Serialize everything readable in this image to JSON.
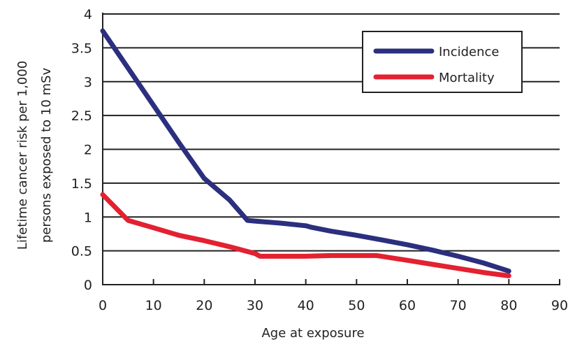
{
  "chart_data": {
    "type": "line",
    "xlabel": "Age at exposure",
    "ylabel": [
      "Lifetime cancer risk per 1,000",
      "persons exposed to 10 mSv"
    ],
    "xlim": [
      0,
      90
    ],
    "ylim": [
      0,
      4
    ],
    "xticks": [
      "0",
      "10",
      "20",
      "30",
      "40",
      "50",
      "60",
      "70",
      "80",
      "90"
    ],
    "yticks": [
      "0",
      "0.5",
      "1",
      "1.5",
      "2",
      "2.5",
      "3",
      "3.5",
      "4"
    ],
    "grid": "horizontal",
    "legend_position": "top-right",
    "series": [
      {
        "name": "Incidence",
        "color": "#2b2f7e",
        "x": [
          0,
          5,
          10,
          15,
          20,
          25,
          28.5,
          30,
          35,
          40,
          41,
          45,
          50,
          55,
          60,
          65,
          70,
          75,
          80
        ],
        "y": [
          3.75,
          3.2,
          2.65,
          2.1,
          1.57,
          1.25,
          0.95,
          0.94,
          0.91,
          0.87,
          0.85,
          0.79,
          0.73,
          0.66,
          0.59,
          0.51,
          0.42,
          0.32,
          0.2
        ]
      },
      {
        "name": "Mortality",
        "color": "#e32131",
        "x": [
          0,
          5,
          10,
          15,
          20,
          25,
          30,
          31,
          35,
          40,
          45,
          50,
          54,
          60,
          65,
          70,
          75,
          80
        ],
        "y": [
          1.33,
          0.95,
          0.84,
          0.73,
          0.65,
          0.56,
          0.46,
          0.42,
          0.42,
          0.42,
          0.43,
          0.43,
          0.43,
          0.36,
          0.3,
          0.24,
          0.18,
          0.13
        ]
      }
    ]
  }
}
